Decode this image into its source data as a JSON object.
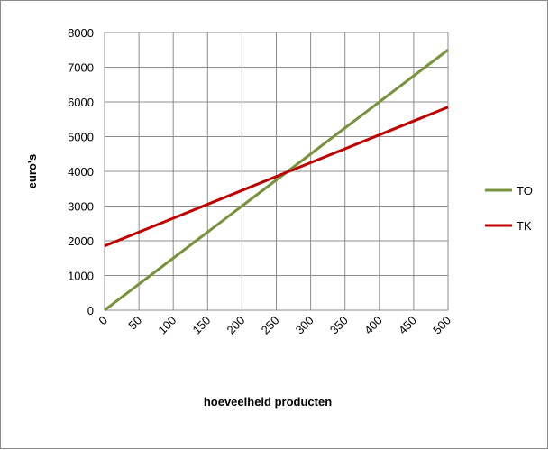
{
  "chart_data": {
    "type": "line",
    "x_label": "hoeveelheid producten",
    "y_label": "euro's",
    "x": [
      0,
      50,
      100,
      150,
      200,
      250,
      300,
      350,
      400,
      450,
      500
    ],
    "series": [
      {
        "name": "TO",
        "color": "#77933c",
        "values": [
          0,
          750,
          1500,
          2250,
          3000,
          3750,
          4500,
          5250,
          6000,
          6750,
          7500
        ]
      },
      {
        "name": "TK",
        "color": "#c00000",
        "values": [
          1850,
          2250,
          2650,
          3050,
          3450,
          3850,
          4250,
          4650,
          5050,
          5450,
          5850
        ]
      }
    ],
    "xlim": [
      0,
      500
    ],
    "xticks": [
      0,
      50,
      100,
      150,
      200,
      250,
      300,
      350,
      400,
      450,
      500
    ],
    "ylim": [
      0,
      8000
    ],
    "yticks": [
      0,
      1000,
      2000,
      3000,
      4000,
      5000,
      6000,
      7000,
      8000
    ],
    "grid": true,
    "legend": "right"
  }
}
